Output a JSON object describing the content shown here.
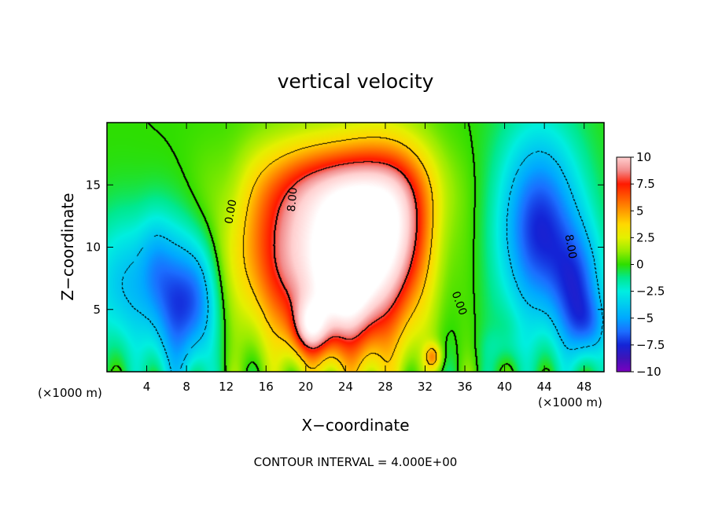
{
  "chart_data": {
    "type": "heatmap",
    "title": "vertical velocity",
    "xlabel": "X−coordinate",
    "ylabel": "Z−coordinate",
    "x_unit_left": "(×1000 m)",
    "x_unit_right": "(×1000 m)",
    "footer": "CONTOUR INTERVAL = 4.000E+00",
    "xlim": [
      0,
      50
    ],
    "ylim": [
      0,
      20
    ],
    "x_ticks": [
      4,
      8,
      12,
      16,
      20,
      24,
      28,
      32,
      36,
      40,
      44,
      48
    ],
    "y_ticks": [
      5,
      10,
      15
    ],
    "colorbar": {
      "range": [
        -10,
        10
      ],
      "ticks": [
        "10",
        "7.5",
        "5",
        "2.5",
        "0",
        "−2.5",
        "−5",
        "−7.5",
        "−10"
      ],
      "stops": [
        {
          "v": 10,
          "c": "#ffd0d0"
        },
        {
          "v": 8.75,
          "c": "#f28c8c"
        },
        {
          "v": 7.5,
          "c": "#ff1a00"
        },
        {
          "v": 5,
          "c": "#ff9a00"
        },
        {
          "v": 3.75,
          "c": "#ffd800"
        },
        {
          "v": 2.5,
          "c": "#e4f000"
        },
        {
          "v": 1.25,
          "c": "#98ec00"
        },
        {
          "v": 0,
          "c": "#2ede00"
        },
        {
          "v": -1.25,
          "c": "#00e890"
        },
        {
          "v": -2.5,
          "c": "#00eee0"
        },
        {
          "v": -5,
          "c": "#00a8ff"
        },
        {
          "v": -6.25,
          "c": "#1b6eff"
        },
        {
          "v": -7.5,
          "c": "#1424d6"
        },
        {
          "v": -8.75,
          "c": "#3e14b8"
        },
        {
          "v": -10,
          "c": "#7a00c0"
        }
      ]
    },
    "contour_labels": [
      {
        "text": "0.00",
        "x": 12.8,
        "z": 12.8,
        "rotate": -80
      },
      {
        "text": "8.00",
        "x": 19.0,
        "z": 13.8,
        "rotate": -85
      },
      {
        "text": "8.00",
        "x": 46.3,
        "z": 10.0,
        "rotate": 80
      },
      {
        "text": "0.00",
        "x": 35.1,
        "z": 5.4,
        "rotate": 70
      }
    ],
    "features": [
      {
        "x": 22.0,
        "z": 10.8,
        "sx": 6.5,
        "sz": 4.5,
        "a": 8.5
      },
      {
        "x": 27.5,
        "z": 8.5,
        "sx": 2.8,
        "sz": 6.0,
        "a": 6.0
      },
      {
        "x": 23.8,
        "z": 6.6,
        "sx": 2.0,
        "sz": 3.8,
        "a": 6.5
      },
      {
        "x": 20.5,
        "z": 3.5,
        "sx": 1.3,
        "sz": 1.6,
        "a": 6.0
      },
      {
        "x": 23.5,
        "z": 15.0,
        "sx": 5.5,
        "sz": 2.5,
        "a": 4.0
      },
      {
        "x": 19.0,
        "z": 6.0,
        "sx": 3.0,
        "sz": 4.0,
        "a": 3.5
      },
      {
        "x": 30.0,
        "z": 12.5,
        "sx": 2.2,
        "sz": 4.0,
        "a": 2.5
      },
      {
        "x": 32.8,
        "z": 1.2,
        "sx": 0.6,
        "sz": 0.7,
        "a": 4.0
      },
      {
        "x": 43.5,
        "z": 11.5,
        "sx": 3.0,
        "sz": 5.5,
        "a": -7.5
      },
      {
        "x": 47.5,
        "z": 6.5,
        "sx": 1.8,
        "sz": 3.5,
        "a": -5.0
      },
      {
        "x": 48.5,
        "z": 3.5,
        "sx": 1.5,
        "sz": 1.8,
        "a": -3.0
      },
      {
        "x": 7.0,
        "z": 5.5,
        "sx": 1.8,
        "sz": 4.5,
        "a": -6.0
      },
      {
        "x": 9.5,
        "z": 6.0,
        "sx": 1.4,
        "sz": 3.5,
        "a": -4.0
      },
      {
        "x": 1.8,
        "z": 7.0,
        "sx": 2.5,
        "sz": 4.0,
        "a": -4.0
      },
      {
        "x": 4.8,
        "z": 9.0,
        "sx": 1.2,
        "sz": 3.0,
        "a": -2.0
      },
      {
        "x": 40.0,
        "z": 2.0,
        "sx": 1.5,
        "sz": 1.0,
        "a": -1.0
      },
      {
        "x": 12.5,
        "z": 14.0,
        "sx": 1.5,
        "sz": 3.0,
        "a": -1.0
      },
      {
        "x": 34.0,
        "z": 10.0,
        "sx": 1.2,
        "sz": 4.0,
        "a": -0.8
      }
    ]
  }
}
